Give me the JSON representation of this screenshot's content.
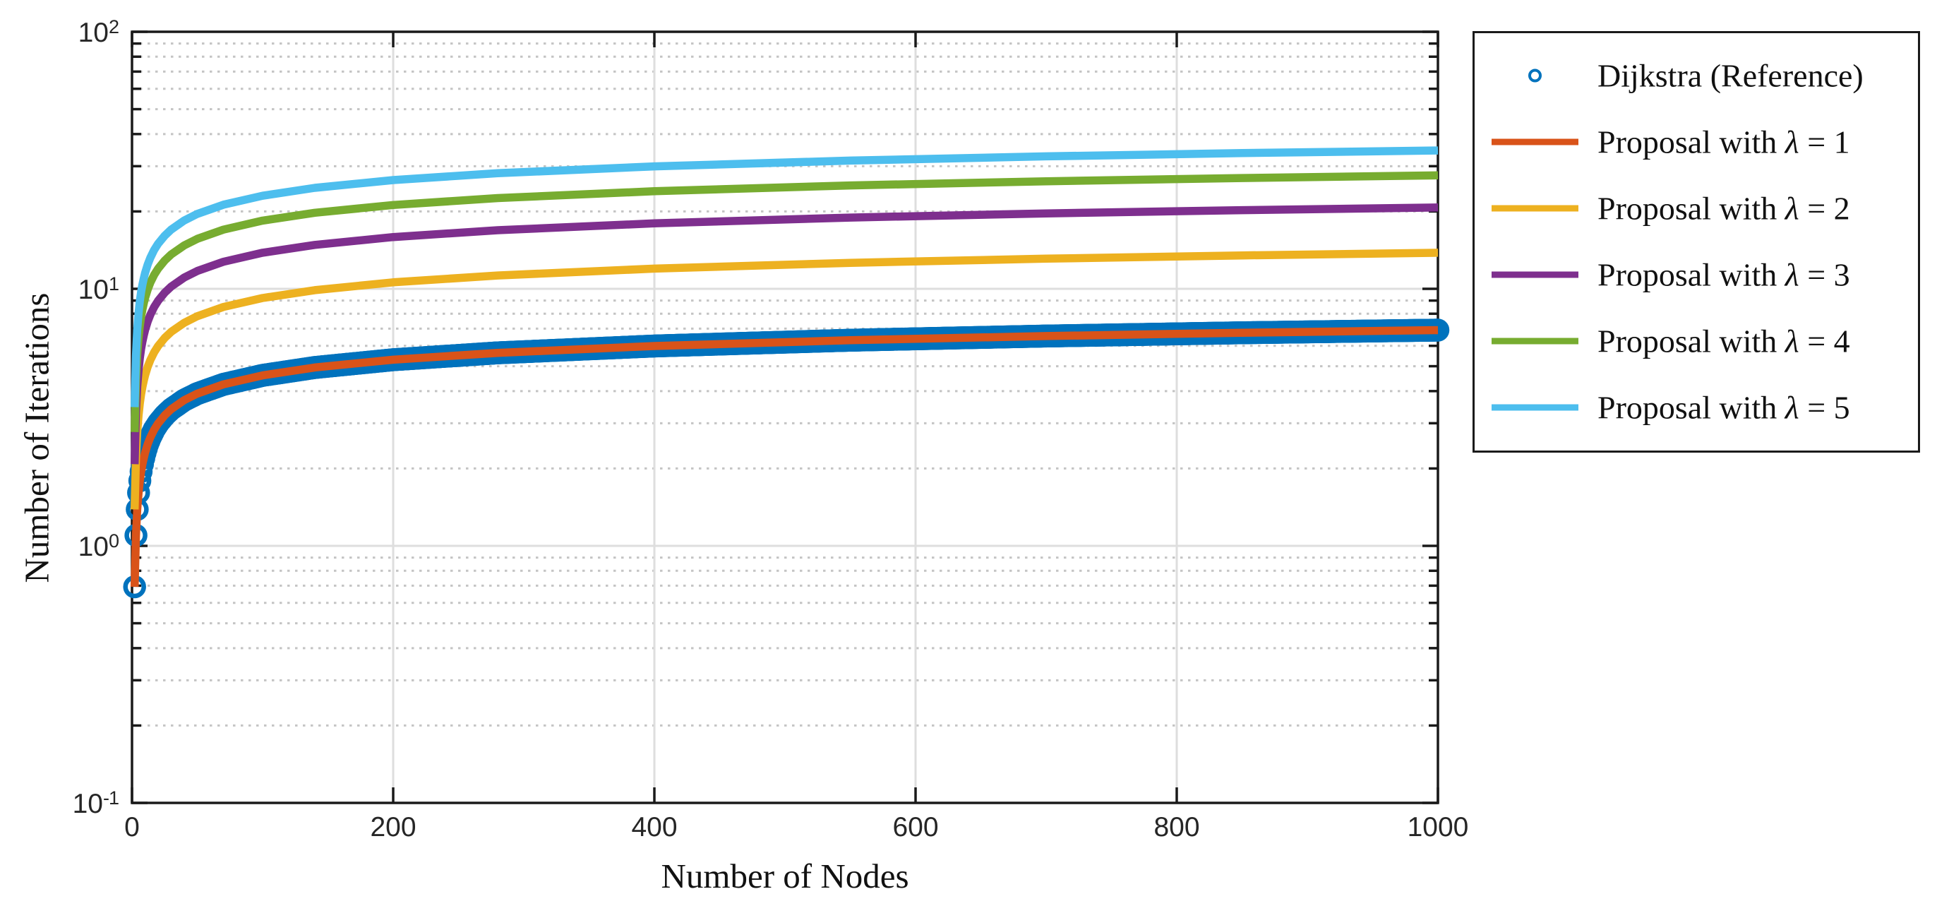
{
  "figure": {
    "background": "#ffffff",
    "axis_color": "#1a1a1a",
    "grid_major_color": "#dedede",
    "grid_minor_color": "#c4c4c4",
    "axes": {
      "xlabel": "Number of Nodes",
      "ylabel": "Number of Iterations",
      "x_ticks": [
        {
          "label": "0",
          "value": 0
        },
        {
          "label": "200",
          "value": 200
        },
        {
          "label": "400",
          "value": 400
        },
        {
          "label": "600",
          "value": 600
        },
        {
          "label": "800",
          "value": 800
        },
        {
          "label": "1000",
          "value": 1000
        }
      ],
      "y_ticks": [
        {
          "base": "10",
          "exp": "2",
          "value": 100
        },
        {
          "base": "10",
          "exp": "1",
          "value": 10
        },
        {
          "base": "10",
          "exp": "0",
          "value": 1
        },
        {
          "base": "10",
          "exp": "-1",
          "value": 0.1
        }
      ]
    },
    "legend": {
      "items": [
        {
          "label": "Dijkstra (Reference)",
          "sample": "circle",
          "color": "#0072BD"
        },
        {
          "label": "Proposal with λ = 1",
          "sample": "line",
          "color": "#D95319"
        },
        {
          "label": "Proposal with λ = 2",
          "sample": "line",
          "color": "#EDB120"
        },
        {
          "label": "Proposal with λ = 3",
          "sample": "line",
          "color": "#7E2F8E"
        },
        {
          "label": "Proposal with λ = 4",
          "sample": "line",
          "color": "#77AC30"
        },
        {
          "label": "Proposal with λ = 5",
          "sample": "line",
          "color": "#4DBEEE"
        }
      ]
    }
  },
  "chart_data": {
    "type": "line",
    "title": "",
    "xlabel": "Number of Nodes",
    "ylabel": "Number of Iterations",
    "x_axis": {
      "scale": "linear",
      "min": 0,
      "max": 1000,
      "ticks": [
        0,
        200,
        400,
        600,
        800,
        1000
      ]
    },
    "y_axis": {
      "scale": "log",
      "min": 0.1,
      "max": 100,
      "ticks": [
        0.1,
        1,
        10,
        100
      ]
    },
    "grid": {
      "major": true,
      "minor": true,
      "minor_style": "dotted"
    },
    "legend_position": "outside-top-right",
    "model": "y = lambda * ln(n) for n = 2..1000; Dijkstra reference equals lambda = 1 with circle markers at every integer n",
    "sample_x": [
      2,
      3,
      4,
      5,
      6,
      7,
      8,
      9,
      10,
      12,
      14,
      17,
      20,
      25,
      30,
      40,
      50,
      70,
      100,
      140,
      200,
      280,
      400,
      550,
      700,
      850,
      1000
    ],
    "series": [
      {
        "name": "Dijkstra (Reference)",
        "style": "scatter",
        "marker": "circle",
        "color": "#0072BD",
        "marker_x_start": 2,
        "marker_x_end": 1000,
        "marker_x_step": 1,
        "lambda": 1,
        "values": [
          0.6931,
          1.0986,
          1.3863,
          1.6094,
          1.7918,
          1.9459,
          2.0794,
          2.1972,
          2.3026,
          2.4849,
          2.6391,
          2.8332,
          2.9957,
          3.2189,
          3.4012,
          3.6889,
          3.912,
          4.2485,
          4.6052,
          4.9416,
          5.2983,
          5.6348,
          5.9915,
          6.3099,
          6.5511,
          6.7452,
          6.9078
        ]
      },
      {
        "name": "Proposal with λ = 1",
        "style": "line",
        "color": "#D95319",
        "lambda": 1,
        "values": [
          0.6931,
          1.0986,
          1.3863,
          1.6094,
          1.7918,
          1.9459,
          2.0794,
          2.1972,
          2.3026,
          2.4849,
          2.6391,
          2.8332,
          2.9957,
          3.2189,
          3.4012,
          3.6889,
          3.912,
          4.2485,
          4.6052,
          4.9416,
          5.2983,
          5.6348,
          5.9915,
          6.3099,
          6.5511,
          6.7452,
          6.9078
        ]
      },
      {
        "name": "Proposal with λ = 2",
        "style": "line",
        "color": "#EDB120",
        "lambda": 2,
        "values": [
          1.3863,
          2.1972,
          2.7726,
          3.2189,
          3.5835,
          3.8918,
          4.1589,
          4.3944,
          4.6052,
          4.9698,
          5.2781,
          5.6664,
          5.9915,
          6.4378,
          6.8024,
          7.3778,
          7.824,
          8.497,
          9.2103,
          9.8833,
          10.5966,
          11.2696,
          11.9829,
          12.6198,
          13.1022,
          13.4904,
          13.8155
        ]
      },
      {
        "name": "Proposal with λ = 3",
        "style": "line",
        "color": "#7E2F8E",
        "lambda": 3,
        "values": [
          2.0794,
          3.2958,
          4.1589,
          4.8283,
          5.3753,
          5.8377,
          6.2383,
          6.5917,
          6.9078,
          7.4547,
          7.9172,
          8.4996,
          8.9872,
          9.6566,
          10.2036,
          11.0666,
          11.7361,
          12.7455,
          13.8155,
          14.8249,
          15.8949,
          16.9044,
          17.9744,
          18.9297,
          19.6532,
          20.2355,
          20.7233
        ]
      },
      {
        "name": "Proposal with λ = 4",
        "style": "line",
        "color": "#77AC30",
        "lambda": 4,
        "values": [
          2.7726,
          4.3944,
          5.5452,
          6.4378,
          7.1671,
          7.7836,
          8.3178,
          8.7889,
          9.2103,
          9.9397,
          10.5562,
          11.3329,
          11.9829,
          12.8755,
          13.6048,
          14.7555,
          15.6481,
          16.9941,
          18.4207,
          19.7665,
          21.1933,
          22.5392,
          23.9659,
          25.2396,
          26.2043,
          26.9807,
          27.631
        ]
      },
      {
        "name": "Proposal with λ = 5",
        "style": "line",
        "color": "#4DBEEE",
        "lambda": 5,
        "values": [
          3.4657,
          5.4931,
          6.9315,
          8.0472,
          8.9588,
          9.7295,
          10.3972,
          10.9861,
          11.5129,
          12.4245,
          13.1953,
          14.1661,
          14.9787,
          16.0944,
          17.0059,
          18.4444,
          19.5601,
          21.2426,
          23.0259,
          24.7081,
          26.4916,
          28.1742,
          29.9573,
          31.5497,
          32.7556,
          33.7262,
          34.5388
        ]
      }
    ]
  }
}
